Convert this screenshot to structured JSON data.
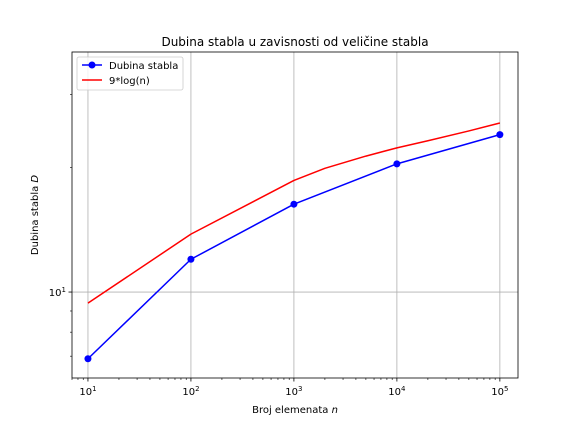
{
  "chart_data": {
    "type": "line",
    "title": "Dubina stabla u zavisnosti od veličine stabla",
    "xlabel": {
      "text": "Broj elemenata ",
      "var": "n"
    },
    "ylabel": {
      "text": "Dubina stabla ",
      "var": "D"
    },
    "xscale": "log",
    "yscale": "log",
    "xlim": [
      7,
      150000
    ],
    "ylim": [
      6.2,
      38
    ],
    "grid": true,
    "legend_position": "top-left",
    "x_ticks": [
      {
        "value": 10,
        "base": "10",
        "exp": "1"
      },
      {
        "value": 100,
        "base": "10",
        "exp": "2"
      },
      {
        "value": 1000,
        "base": "10",
        "exp": "3"
      },
      {
        "value": 10000,
        "base": "10",
        "exp": "4"
      },
      {
        "value": 100000,
        "base": "10",
        "exp": "5"
      }
    ],
    "y_ticks": [
      {
        "value": 10,
        "base": "10",
        "exp": "1"
      }
    ],
    "series": [
      {
        "name": "Dubina stabla",
        "color": "#0000ff",
        "marker": "circle",
        "x": [
          10,
          100,
          1000,
          10000,
          100000
        ],
        "y": [
          6.9,
          12.0,
          16.3,
          20.4,
          24.0
        ]
      },
      {
        "name": "9*log(n)",
        "color": "#ff0000",
        "marker": "none",
        "x": [
          10,
          100,
          1000,
          2000,
          5000,
          10000,
          20000,
          50000,
          100000
        ],
        "y": [
          9.4,
          13.8,
          18.6,
          19.9,
          21.3,
          22.3,
          23.2,
          24.5,
          25.6
        ]
      }
    ]
  }
}
